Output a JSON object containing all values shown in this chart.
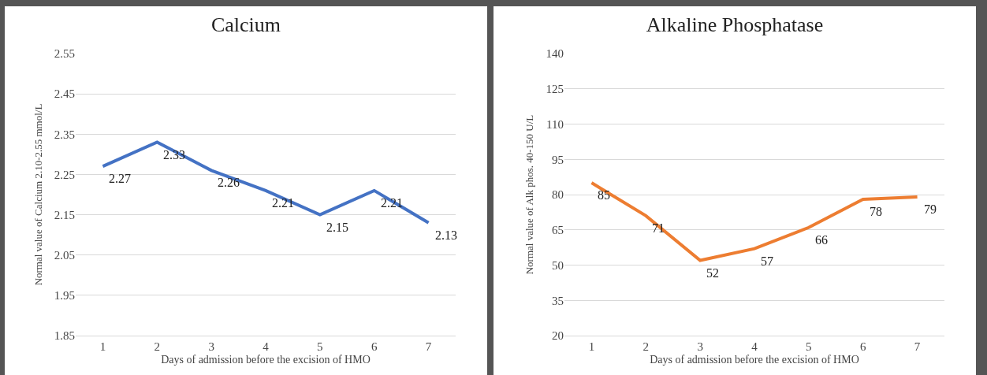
{
  "chart_data": [
    {
      "type": "line",
      "title": "Calcium",
      "xlabel": "Days of admission before the excision of HMO",
      "ylabel": "Normal value of Calcium 2.10-2.55 mmol/L",
      "categories": [
        "1",
        "2",
        "3",
        "4",
        "5",
        "6",
        "7"
      ],
      "series": [
        {
          "color": "#4472c4",
          "values": [
            2.27,
            2.33,
            2.26,
            2.21,
            2.15,
            2.21,
            2.13
          ]
        }
      ],
      "ylim": [
        1.85,
        2.55
      ],
      "yticks": [
        1.85,
        1.95,
        2.05,
        2.15,
        2.25,
        2.35,
        2.45,
        2.55
      ],
      "grid": "y",
      "marker": "none",
      "line_style": "solid",
      "data_labels": true
    },
    {
      "type": "line",
      "title": "Alkaline Phosphatase",
      "xlabel": "Days of admission before the excision of HMO",
      "ylabel": "Normal value of Alk phos. 40-150 U/L",
      "categories": [
        "1",
        "2",
        "3",
        "4",
        "5",
        "6",
        "7"
      ],
      "series": [
        {
          "color": "#ed7d31",
          "values": [
            85,
            71,
            52,
            57,
            66,
            78,
            79
          ]
        }
      ],
      "ylim": [
        20,
        140
      ],
      "yticks": [
        20,
        35,
        50,
        65,
        80,
        95,
        110,
        125,
        140
      ],
      "grid": "y",
      "marker": "none",
      "line_style": "solid",
      "data_labels": true
    }
  ]
}
